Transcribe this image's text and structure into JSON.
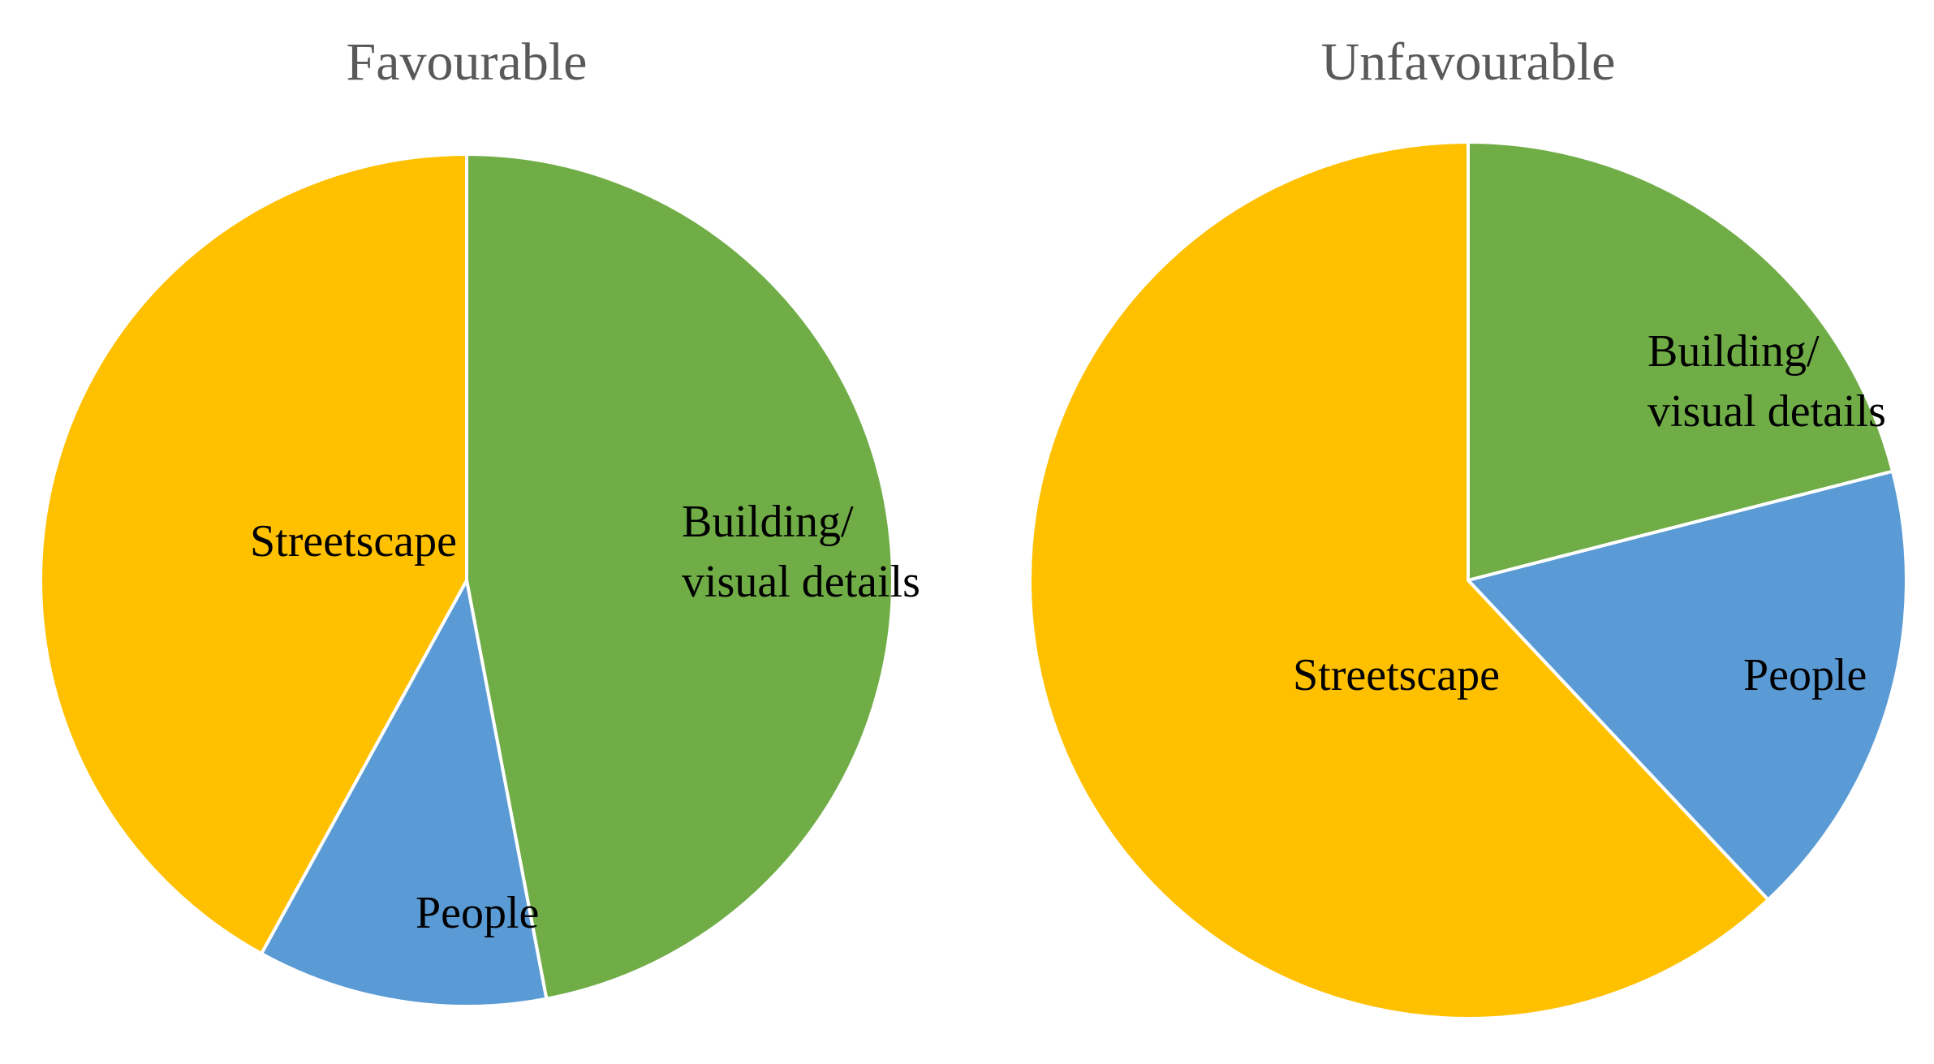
{
  "chart_data": [
    {
      "type": "pie",
      "title": "Favourable",
      "start_angle_deg": 0,
      "direction": "clockwise",
      "slices": [
        {
          "label_lines": [
            "Building/",
            "visual details"
          ],
          "value": 47,
          "color": "#70AD47"
        },
        {
          "label_lines": [
            "People"
          ],
          "value": 11,
          "color": "#5B9BD5"
        },
        {
          "label_lines": [
            "Streetscape"
          ],
          "value": 42,
          "color": "#FFC000"
        }
      ]
    },
    {
      "type": "pie",
      "title": "Unfavourable",
      "start_angle_deg": 0,
      "direction": "clockwise",
      "slices": [
        {
          "label_lines": [
            "Building/",
            "visual details"
          ],
          "value": 21,
          "color": "#70AD47"
        },
        {
          "label_lines": [
            "People"
          ],
          "value": 17,
          "color": "#5B9BD5"
        },
        {
          "label_lines": [
            "Streetscape"
          ],
          "value": 62,
          "color": "#FFC000"
        }
      ]
    }
  ]
}
